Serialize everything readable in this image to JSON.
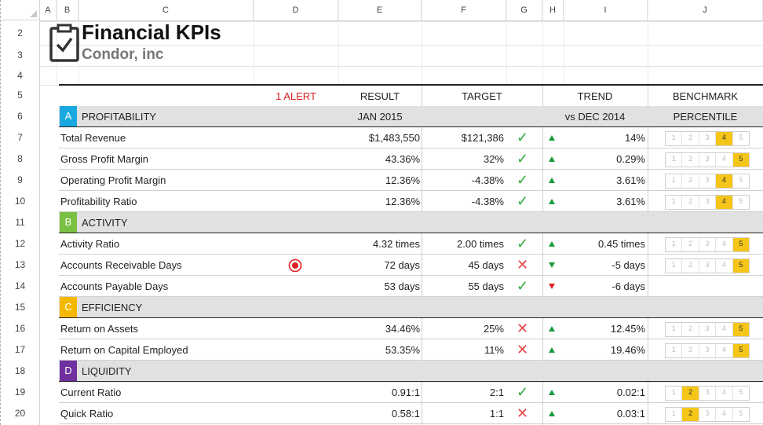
{
  "columns": [
    "A",
    "B",
    "C",
    "D",
    "E",
    "F",
    "G",
    "H",
    "I",
    "J"
  ],
  "row_numbers": [
    "2",
    "3",
    "4",
    "5",
    "6",
    "7",
    "8",
    "9",
    "10",
    "11",
    "12",
    "13",
    "14",
    "15",
    "16",
    "17",
    "18",
    "19",
    "20"
  ],
  "report": {
    "title": "Financial KPIs",
    "subtitle": "Condor, inc",
    "alert_label": "1 ALERT",
    "headers": {
      "result": "RESULT",
      "target": "TARGET",
      "trend": "TREND",
      "benchmark": "BENCHMARK"
    },
    "subheaders": {
      "result": "JAN 2015",
      "trend": "vs DEC 2014",
      "benchmark": "PERCENTILE"
    }
  },
  "colors": {
    "A": "#1aa8e0",
    "B": "#7ac143",
    "C": "#f5b800",
    "D": "#7030a0",
    "alert": "#e02020",
    "highlight": "#f5c518"
  },
  "benchmark_scale": [
    "1",
    "2",
    "3",
    "4",
    "5"
  ],
  "sections": [
    {
      "letter": "A",
      "name": "PROFITABILITY",
      "rows": [
        {
          "name": "Total Revenue",
          "result": "$1,483,550",
          "target": "$121,386",
          "status": "check",
          "trend_dir": "up",
          "trend": "14%",
          "percentile": 4
        },
        {
          "name": "Gross Profit Margin",
          "result": "43.36%",
          "target": "32%",
          "status": "check",
          "trend_dir": "up",
          "trend": "0.29%",
          "percentile": 5
        },
        {
          "name": "Operating Profit Margin",
          "result": "12.36%",
          "target": "-4.38%",
          "status": "check",
          "trend_dir": "up",
          "trend": "3.61%",
          "percentile": 4
        },
        {
          "name": "Profitability Ratio",
          "result": "12.36%",
          "target": "-4.38%",
          "status": "check",
          "trend_dir": "up",
          "trend": "3.61%",
          "percentile": 4
        }
      ]
    },
    {
      "letter": "B",
      "name": "ACTIVITY",
      "rows": [
        {
          "name": "Activity Ratio",
          "result": "4.32 times",
          "target": "2.00 times",
          "status": "check",
          "trend_dir": "up",
          "trend": "0.45 times",
          "percentile": 5
        },
        {
          "name": "Accounts Receivable Days",
          "alert": true,
          "result": "72 days",
          "target": "45 days",
          "status": "cross",
          "trend_dir": "down-good",
          "trend": "-5 days",
          "percentile": 5
        },
        {
          "name": "Accounts Payable Days",
          "result": "53 days",
          "target": "55 days",
          "status": "check",
          "trend_dir": "down-bad",
          "trend": "-6 days",
          "percentile": null
        }
      ]
    },
    {
      "letter": "C",
      "name": "EFFICIENCY",
      "rows": [
        {
          "name": "Return on Assets",
          "result": "34.46%",
          "target": "25%",
          "status": "cross",
          "trend_dir": "up",
          "trend": "12.45%",
          "percentile": 5
        },
        {
          "name": "Return on Capital Employed",
          "result": "53.35%",
          "target": "11%",
          "status": "cross",
          "trend_dir": "up",
          "trend": "19.46%",
          "percentile": 5
        }
      ]
    },
    {
      "letter": "D",
      "name": "LIQUIDITY",
      "rows": [
        {
          "name": "Current Ratio",
          "result": "0.91:1",
          "target": "2:1",
          "status": "check",
          "trend_dir": "up",
          "trend": "0.02:1",
          "percentile": 2
        },
        {
          "name": "Quick Ratio",
          "result": "0.58:1",
          "target": "1:1",
          "status": "cross",
          "trend_dir": "up",
          "trend": "0.03:1",
          "percentile": 2
        }
      ]
    }
  ]
}
